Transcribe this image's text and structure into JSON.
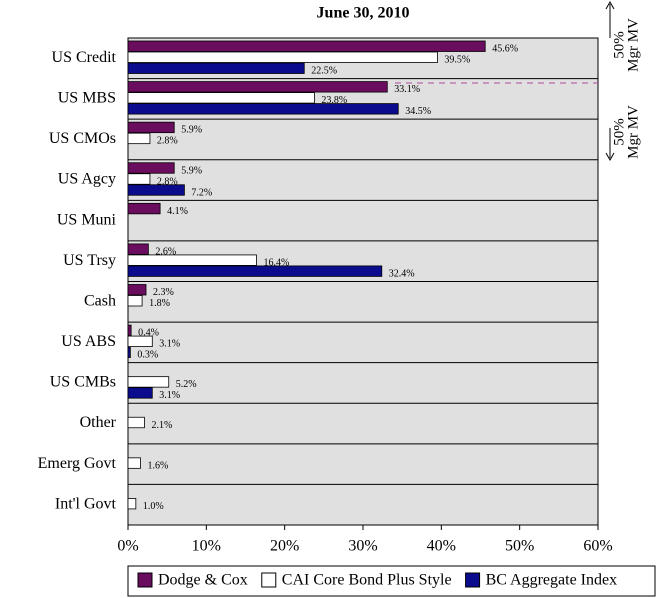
{
  "chart_data": {
    "type": "bar",
    "orientation": "horizontal",
    "title": "June 30, 2010",
    "categories": [
      "US Credit",
      "US MBS",
      "US CMOs",
      "US Agcy",
      "US Muni",
      "US Trsy",
      "Cash",
      "US ABS",
      "US CMBs",
      "Other",
      "Emerg Govt",
      "Int'l Govt"
    ],
    "series": [
      {
        "name": "Dodge & Cox",
        "color": "#6a0d5f",
        "values": [
          45.6,
          33.1,
          5.9,
          5.9,
          4.1,
          2.6,
          2.3,
          0.4,
          null,
          null,
          null,
          null
        ],
        "value_labels": [
          "45.6%",
          "33.1%",
          "5.9%",
          "5.9%",
          "4.1%",
          "2.6%",
          "2.3%",
          "0.4%",
          null,
          null,
          null,
          null
        ]
      },
      {
        "name": "CAI Core Bond Plus Style",
        "color": "#ffffff",
        "values": [
          39.5,
          23.8,
          2.8,
          2.8,
          null,
          16.4,
          1.8,
          3.1,
          5.2,
          2.1,
          1.6,
          1.0
        ],
        "value_labels": [
          "39.5%",
          "23.8%",
          "2.8%",
          "2.8%",
          null,
          "16.4%",
          "1.8%",
          "3.1%",
          "5.2%",
          "2.1%",
          "1.6%",
          "1.0%"
        ]
      },
      {
        "name": "BC Aggregate Index",
        "color": "#0b0b8e",
        "values": [
          22.5,
          34.5,
          null,
          7.2,
          null,
          32.4,
          null,
          0.3,
          3.1,
          null,
          null,
          null
        ],
        "value_labels": [
          "22.5%",
          "34.5%",
          null,
          "7.2%",
          null,
          "32.4%",
          null,
          "0.3%",
          "3.1%",
          null,
          null,
          null
        ]
      }
    ],
    "xlim": [
      0,
      60
    ],
    "xticks": [
      {
        "value": 0,
        "label": "0%"
      },
      {
        "value": 10,
        "label": "10%"
      },
      {
        "value": 20,
        "label": "20%"
      },
      {
        "value": 30,
        "label": "30%"
      },
      {
        "value": 40,
        "label": "40%"
      },
      {
        "value": 50,
        "label": "50%"
      },
      {
        "value": 60,
        "label": "60%"
      }
    ],
    "annotations": [
      "50%",
      "Mgr MV",
      "50%",
      "Mgr MV"
    ],
    "legend": "bottom"
  }
}
